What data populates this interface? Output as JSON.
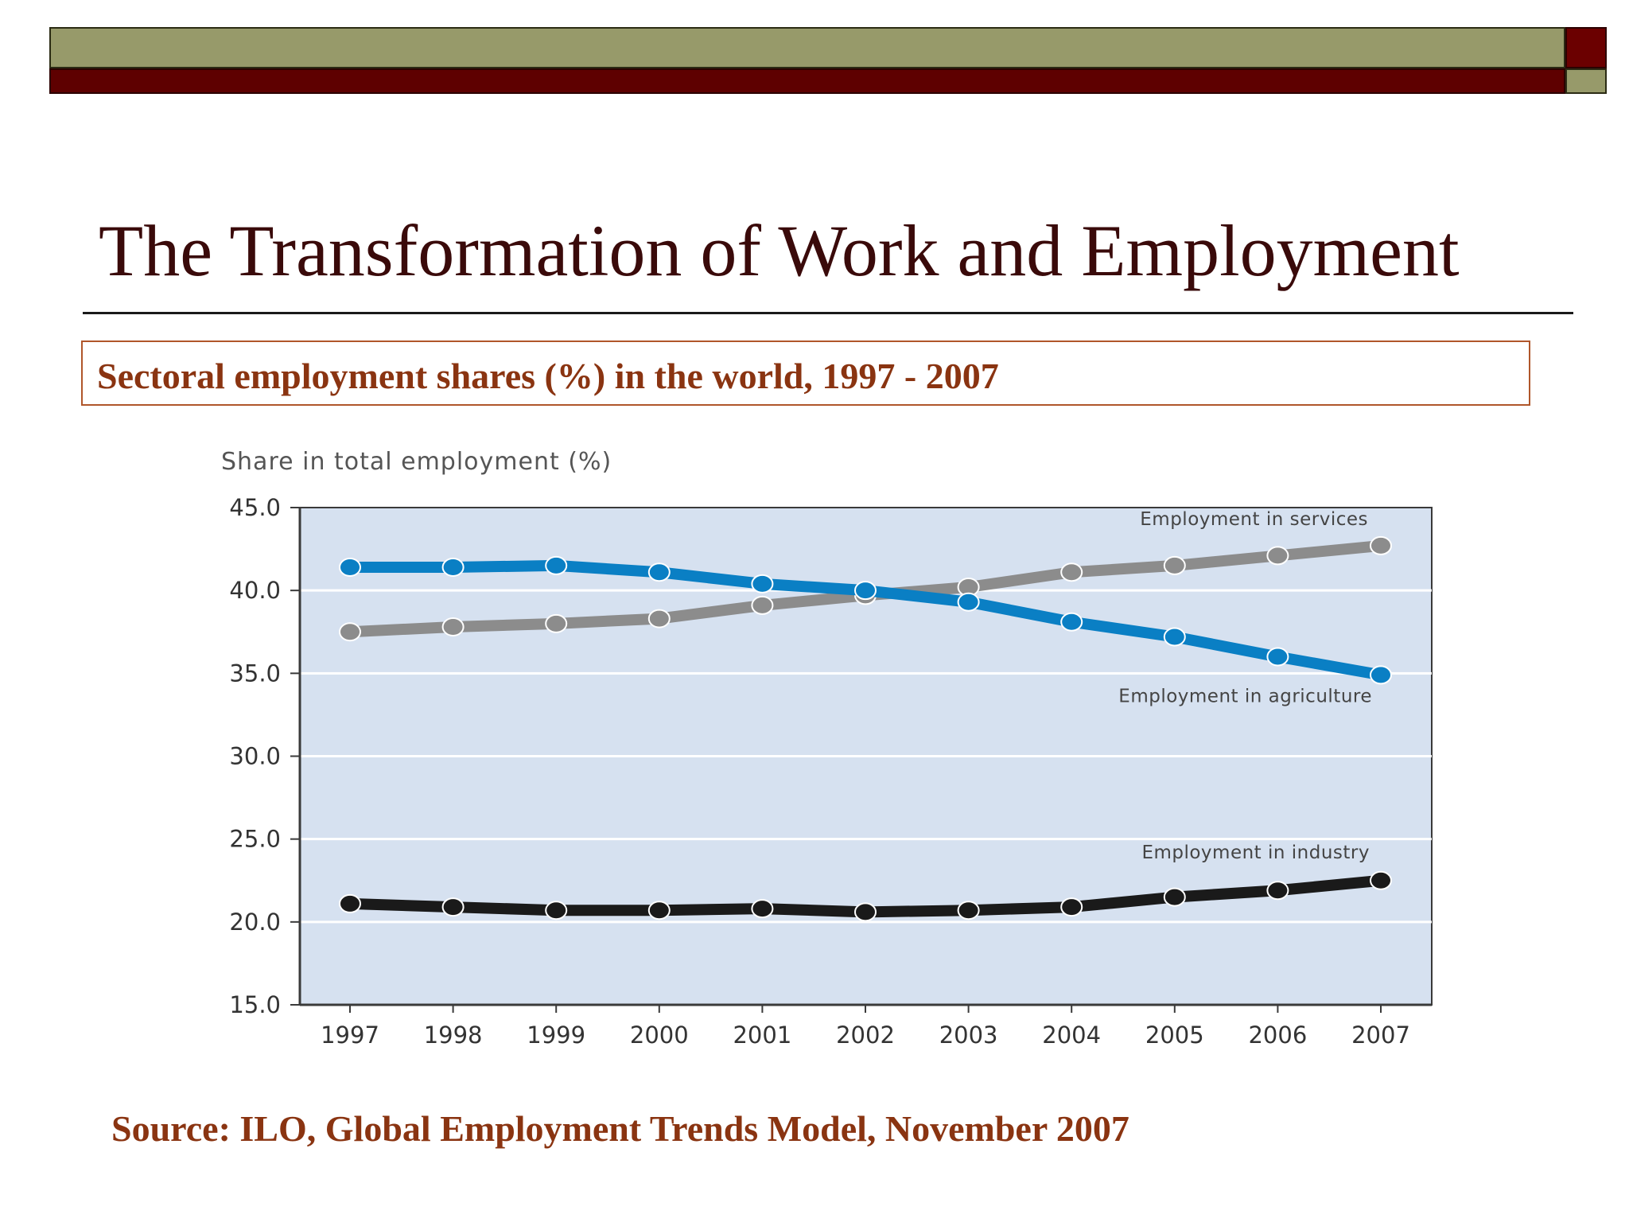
{
  "slide": {
    "title": "The Transformation of Work and Employment",
    "subtitle": "Sectoral employment shares (%) in the world, 1997 - 2007",
    "source": "Source: ILO, Global Employment Trends Model, November 2007"
  },
  "chart_data": {
    "type": "line",
    "ylabel": "Share in total employment (%)",
    "xlabel": "",
    "x": [
      "1997",
      "1998",
      "1999",
      "2000",
      "2001",
      "2002",
      "2003",
      "2004",
      "2005",
      "2006",
      "2007"
    ],
    "yticks": [
      "45.0",
      "40.0",
      "35.0",
      "30.0",
      "25.0",
      "20.0",
      "15.0"
    ],
    "ylim": [
      15,
      45
    ],
    "grid": true,
    "series": [
      {
        "name": "Employment in services",
        "color": "#8c8c8c",
        "values": [
          37.5,
          37.8,
          38.0,
          38.3,
          39.1,
          39.7,
          40.2,
          41.1,
          41.5,
          42.1,
          42.7
        ]
      },
      {
        "name": "Employment in agriculture",
        "color": "#0a7fc4",
        "values": [
          41.4,
          41.4,
          41.5,
          41.1,
          40.4,
          40.0,
          39.3,
          38.1,
          37.2,
          36.0,
          34.9
        ]
      },
      {
        "name": "Employment in industry",
        "color": "#1a1a1a",
        "values": [
          21.1,
          20.9,
          20.7,
          20.7,
          20.8,
          20.6,
          20.7,
          20.9,
          21.5,
          21.9,
          22.5
        ]
      }
    ]
  }
}
